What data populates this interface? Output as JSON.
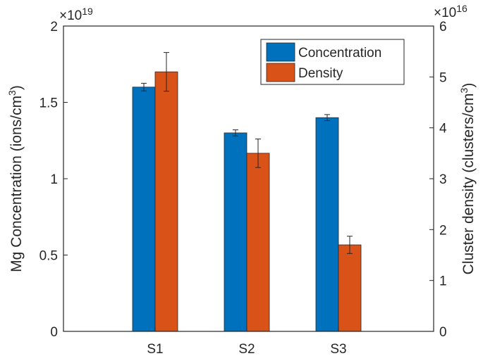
{
  "chart_data": {
    "type": "bar",
    "categories": [
      "S1",
      "S2",
      "S3"
    ],
    "x_start_label": "",
    "left_axis": {
      "label_prefix": "Mg Concentration (ions/cm",
      "label_sup": "3",
      "label_suffix": ")",
      "ylim": [
        0,
        2
      ],
      "ticks": [
        0,
        0.5,
        1,
        1.5,
        2
      ],
      "tick_labels": [
        "0",
        "0.5",
        "1",
        "1.5",
        "2"
      ],
      "multiplier_base": "×10",
      "multiplier_exp": "19"
    },
    "right_axis": {
      "label_prefix": "Cluster density (clusters/cm",
      "label_sup": "3",
      "label_suffix": ")",
      "ylim": [
        0,
        6
      ],
      "ticks": [
        0,
        1,
        2,
        3,
        4,
        5,
        6
      ],
      "tick_labels": [
        "0",
        "1",
        "2",
        "3",
        "4",
        "5",
        "6"
      ],
      "multiplier_base": "×10",
      "multiplier_exp": "16"
    },
    "series": [
      {
        "name": "Concentration",
        "axis": "left",
        "color": "#0072BD",
        "values": [
          1.6,
          1.3,
          1.4
        ],
        "errors": [
          0.025,
          0.02,
          0.02
        ]
      },
      {
        "name": "Density",
        "axis": "right",
        "color": "#D95319",
        "values": [
          5.1,
          3.5,
          1.7
        ],
        "errors": [
          0.38,
          0.28,
          0.17
        ]
      }
    ],
    "legend_position": "top-right",
    "grid": false
  }
}
